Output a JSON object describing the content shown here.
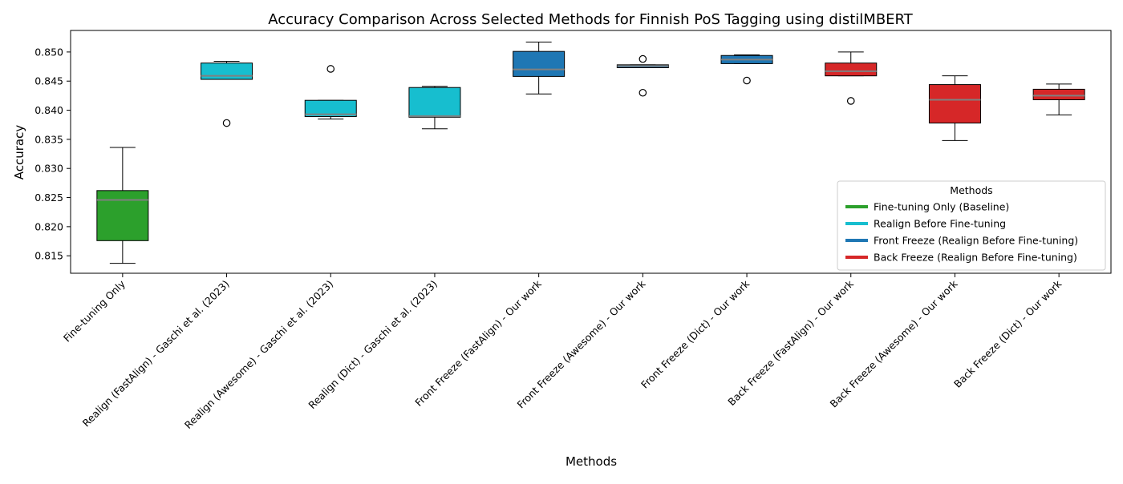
{
  "chart_data": {
    "type": "box",
    "title": "Accuracy Comparison Across Selected Methods for Finnish PoS Tagging using distilMBERT",
    "xlabel": "Methods",
    "ylabel": "Accuracy",
    "ylim": [
      0.812,
      0.8537
    ],
    "yticks": [
      "0.815",
      "0.820",
      "0.825",
      "0.830",
      "0.835",
      "0.840",
      "0.845",
      "0.850"
    ],
    "ytick_values": [
      0.815,
      0.82,
      0.825,
      0.83,
      0.835,
      0.84,
      0.845,
      0.85
    ],
    "grid": false,
    "legend": {
      "title": "Methods",
      "placement": "lower-right",
      "entries": [
        {
          "label": "Fine-tuning Only (Baseline)",
          "color": "#2ca02c"
        },
        {
          "label": "Realign Before Fine-tuning",
          "color": "#17becf"
        },
        {
          "label": "Front Freeze (Realign Before Fine-tuning)",
          "color": "#1f77b4"
        },
        {
          "label": "Back Freeze (Realign Before Fine-tuning)",
          "color": "#d62728"
        }
      ]
    },
    "median_color": "#808080",
    "boxes": [
      {
        "label": "Fine-tuning Only",
        "color": "#2ca02c",
        "whisker_low": 0.8137,
        "q1": 0.8176,
        "median": 0.8246,
        "q3": 0.8262,
        "whisker_high": 0.8336,
        "outliers": []
      },
      {
        "label": "Realign (FastAlign) - Gaschi et al. (2023)",
        "color": "#17becf",
        "whisker_low": 0.8453,
        "q1": 0.8453,
        "median": 0.8459,
        "q3": 0.8481,
        "whisker_high": 0.8484,
        "outliers": [
          0.8378
        ]
      },
      {
        "label": "Realign (Awesome) - Gaschi et al. (2023)",
        "color": "#17becf",
        "whisker_low": 0.8385,
        "q1": 0.8389,
        "median": 0.8393,
        "q3": 0.8417,
        "whisker_high": 0.8417,
        "outliers": [
          0.8471
        ]
      },
      {
        "label": "Realign (Dict) - Gaschi et al. (2023)",
        "color": "#17becf",
        "whisker_low": 0.8368,
        "q1": 0.8388,
        "median": 0.839,
        "q3": 0.8439,
        "whisker_high": 0.8441,
        "outliers": []
      },
      {
        "label": "Front Freeze (FastAlign) - Our work",
        "color": "#1f77b4",
        "whisker_low": 0.8428,
        "q1": 0.8458,
        "median": 0.847,
        "q3": 0.8501,
        "whisker_high": 0.8517,
        "outliers": []
      },
      {
        "label": "Front Freeze (Awesome) - Our work",
        "color": "#1f77b4",
        "whisker_low": 0.8473,
        "q1": 0.8473,
        "median": 0.8476,
        "q3": 0.8478,
        "whisker_high": 0.8478,
        "outliers": [
          0.8488,
          0.843
        ]
      },
      {
        "label": "Front Freeze (Dict) - Our work",
        "color": "#1f77b4",
        "whisker_low": 0.848,
        "q1": 0.848,
        "median": 0.8487,
        "q3": 0.8494,
        "whisker_high": 0.8495,
        "outliers": [
          0.8451
        ]
      },
      {
        "label": "Back Freeze (FastAlign) - Our work",
        "color": "#d62728",
        "whisker_low": 0.8459,
        "q1": 0.8459,
        "median": 0.8467,
        "q3": 0.8481,
        "whisker_high": 0.85,
        "outliers": [
          0.8416
        ]
      },
      {
        "label": "Back Freeze (Awesome) - Our work",
        "color": "#d62728",
        "whisker_low": 0.8348,
        "q1": 0.8378,
        "median": 0.8418,
        "q3": 0.8444,
        "whisker_high": 0.8459,
        "outliers": []
      },
      {
        "label": "Back Freeze (Dict) - Our work",
        "color": "#d62728",
        "whisker_low": 0.8392,
        "q1": 0.8418,
        "median": 0.8425,
        "q3": 0.8436,
        "whisker_high": 0.8445,
        "outliers": []
      }
    ]
  }
}
